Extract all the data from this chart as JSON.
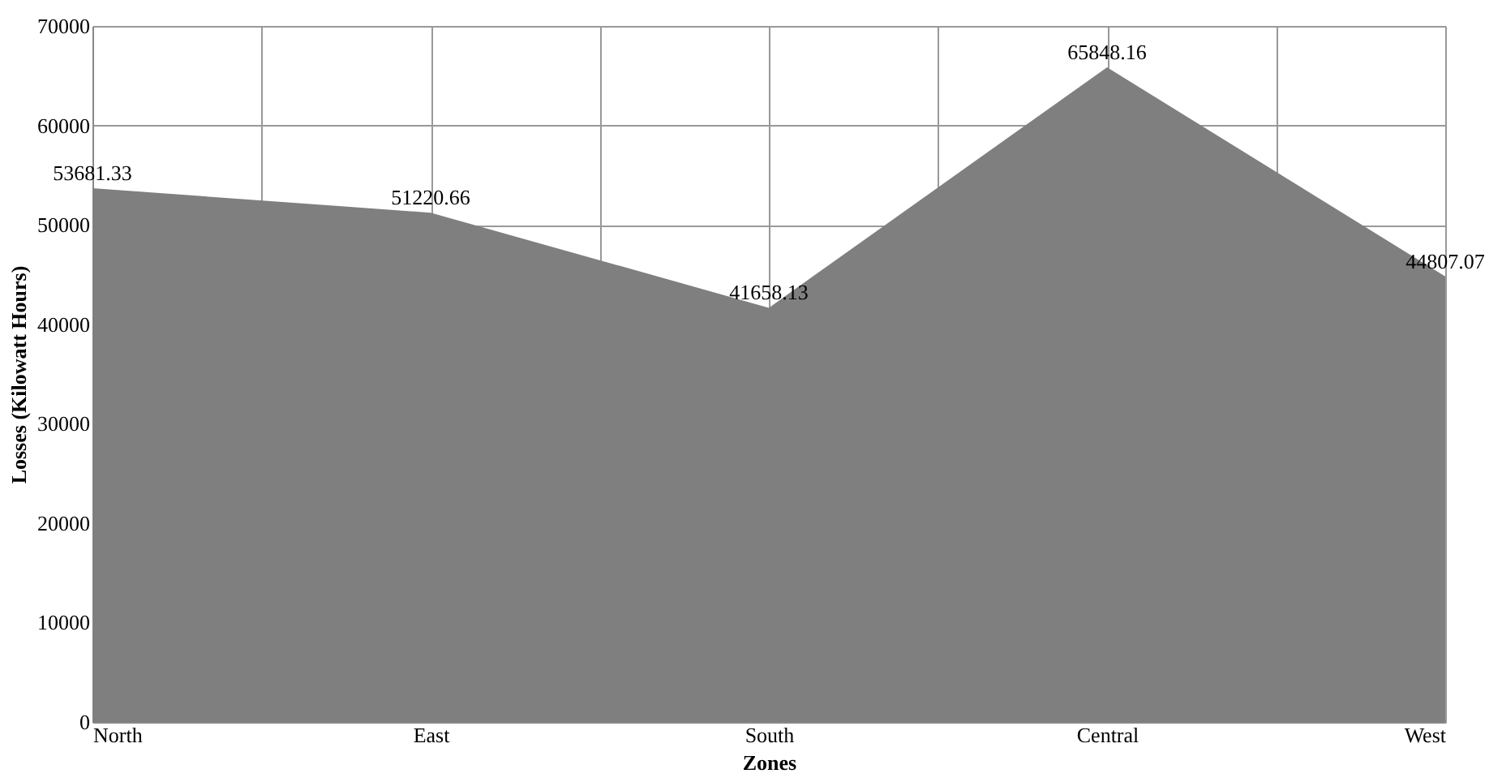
{
  "chart_data": {
    "type": "area",
    "xlabel": "Zones",
    "ylabel": "Losses (Kilowatt Hours)",
    "categories": [
      "North",
      "East",
      "South",
      "Central",
      "West"
    ],
    "values": [
      53681.33,
      51220.66,
      41658.13,
      65848.16,
      44807.07
    ],
    "color": "#7f7f7f",
    "ylim": [
      0,
      70000
    ],
    "yticks": [
      0,
      10000,
      20000,
      30000,
      40000,
      50000,
      60000,
      70000
    ],
    "grid": true,
    "data_labels": true
  }
}
